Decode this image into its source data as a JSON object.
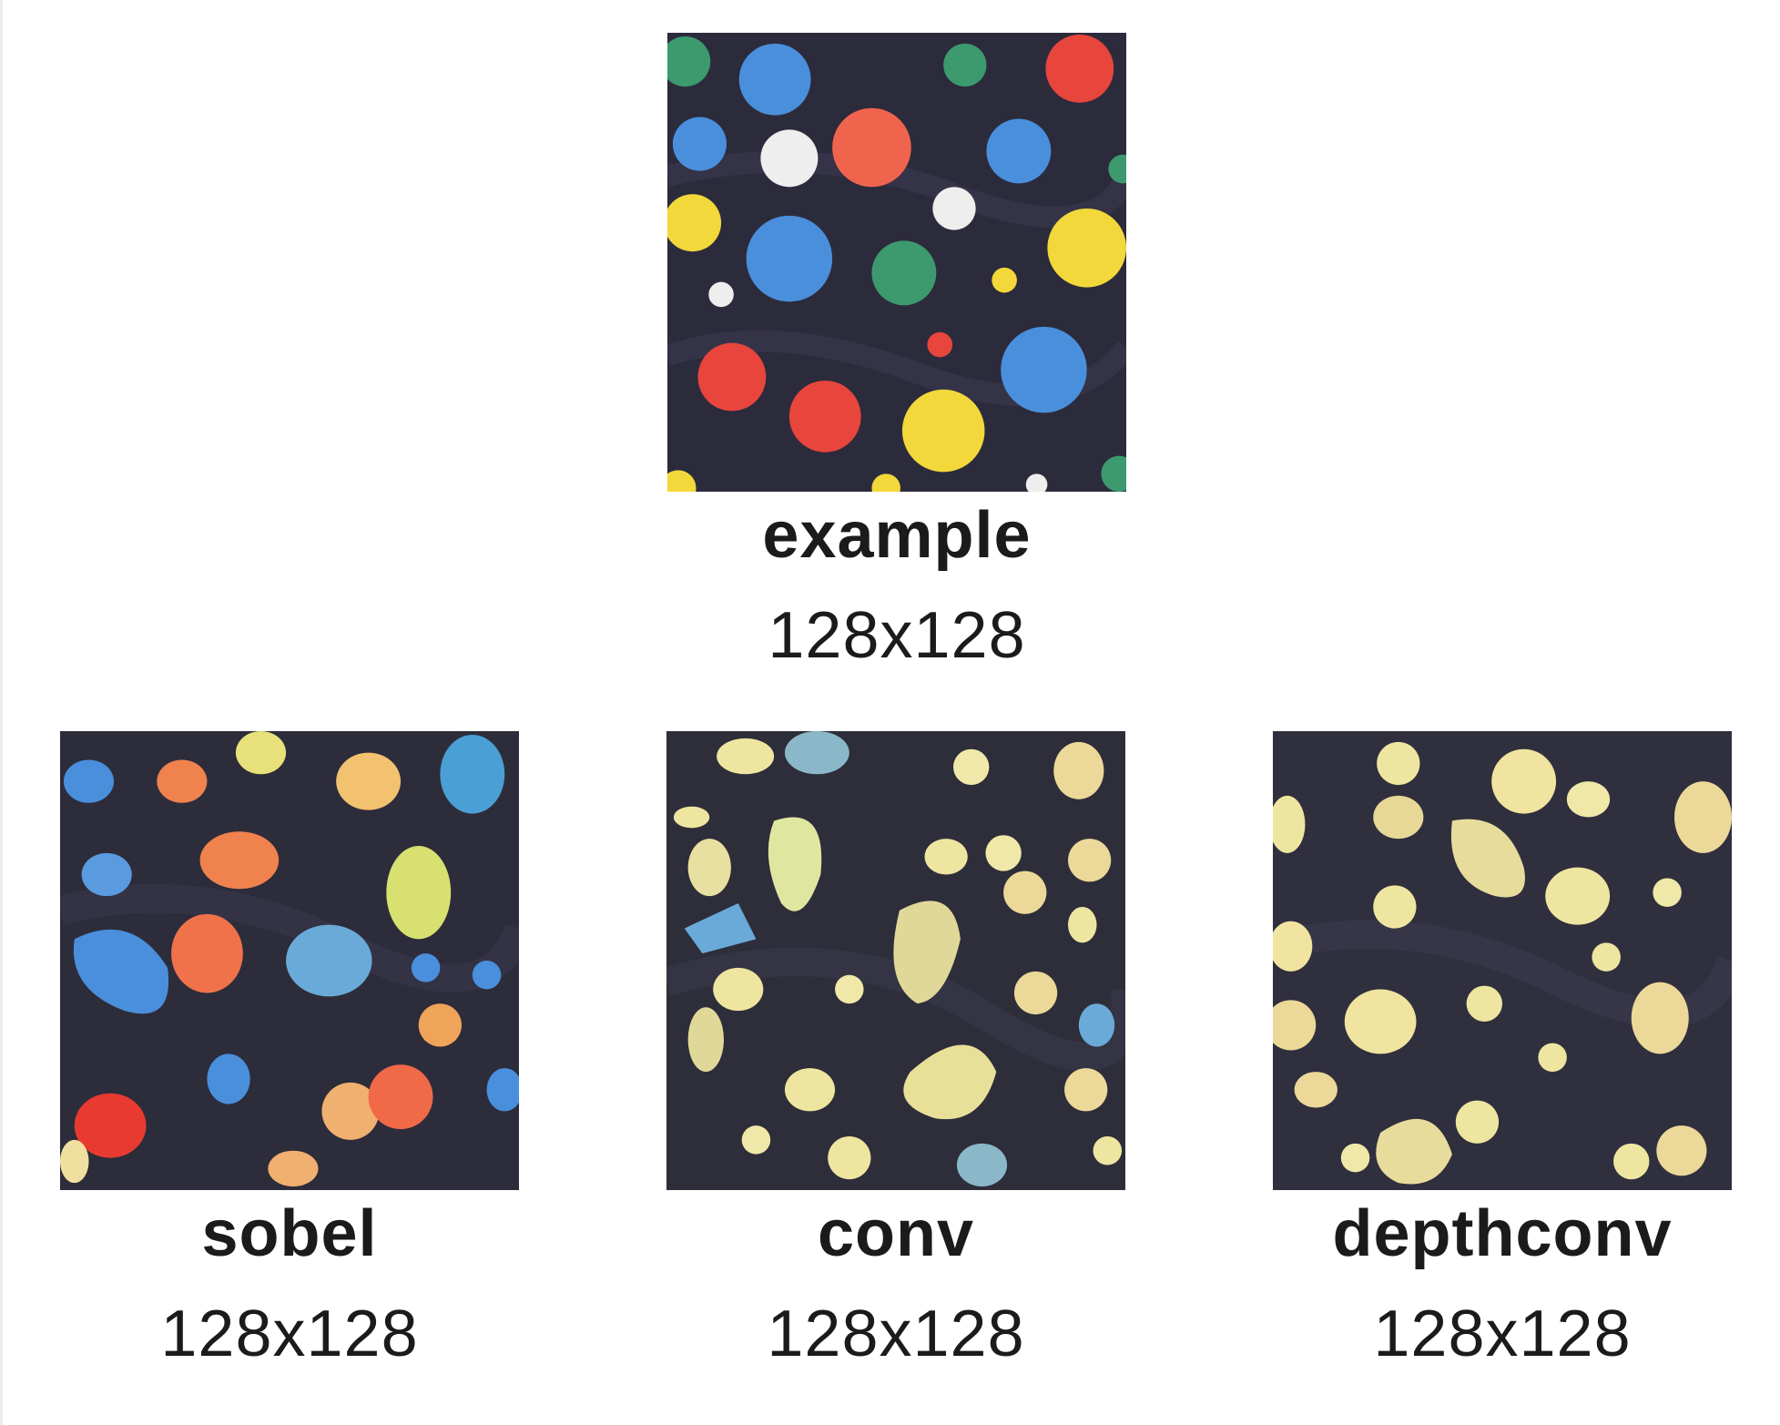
{
  "tiles": [
    {
      "name": "example",
      "size": "128x128"
    },
    {
      "name": "sobel",
      "size": "128x128"
    },
    {
      "name": "conv",
      "size": "128x128"
    },
    {
      "name": "depthconv",
      "size": "128x128"
    }
  ],
  "colors": {
    "fabric": "#2c2b3c",
    "red": "#e8453c",
    "blue": "#4a8fdc",
    "yellow": "#f2d83a",
    "green": "#3c9a6e",
    "white": "#eeeeee",
    "orange": "#f0824e",
    "cream": "#eee6a0"
  }
}
